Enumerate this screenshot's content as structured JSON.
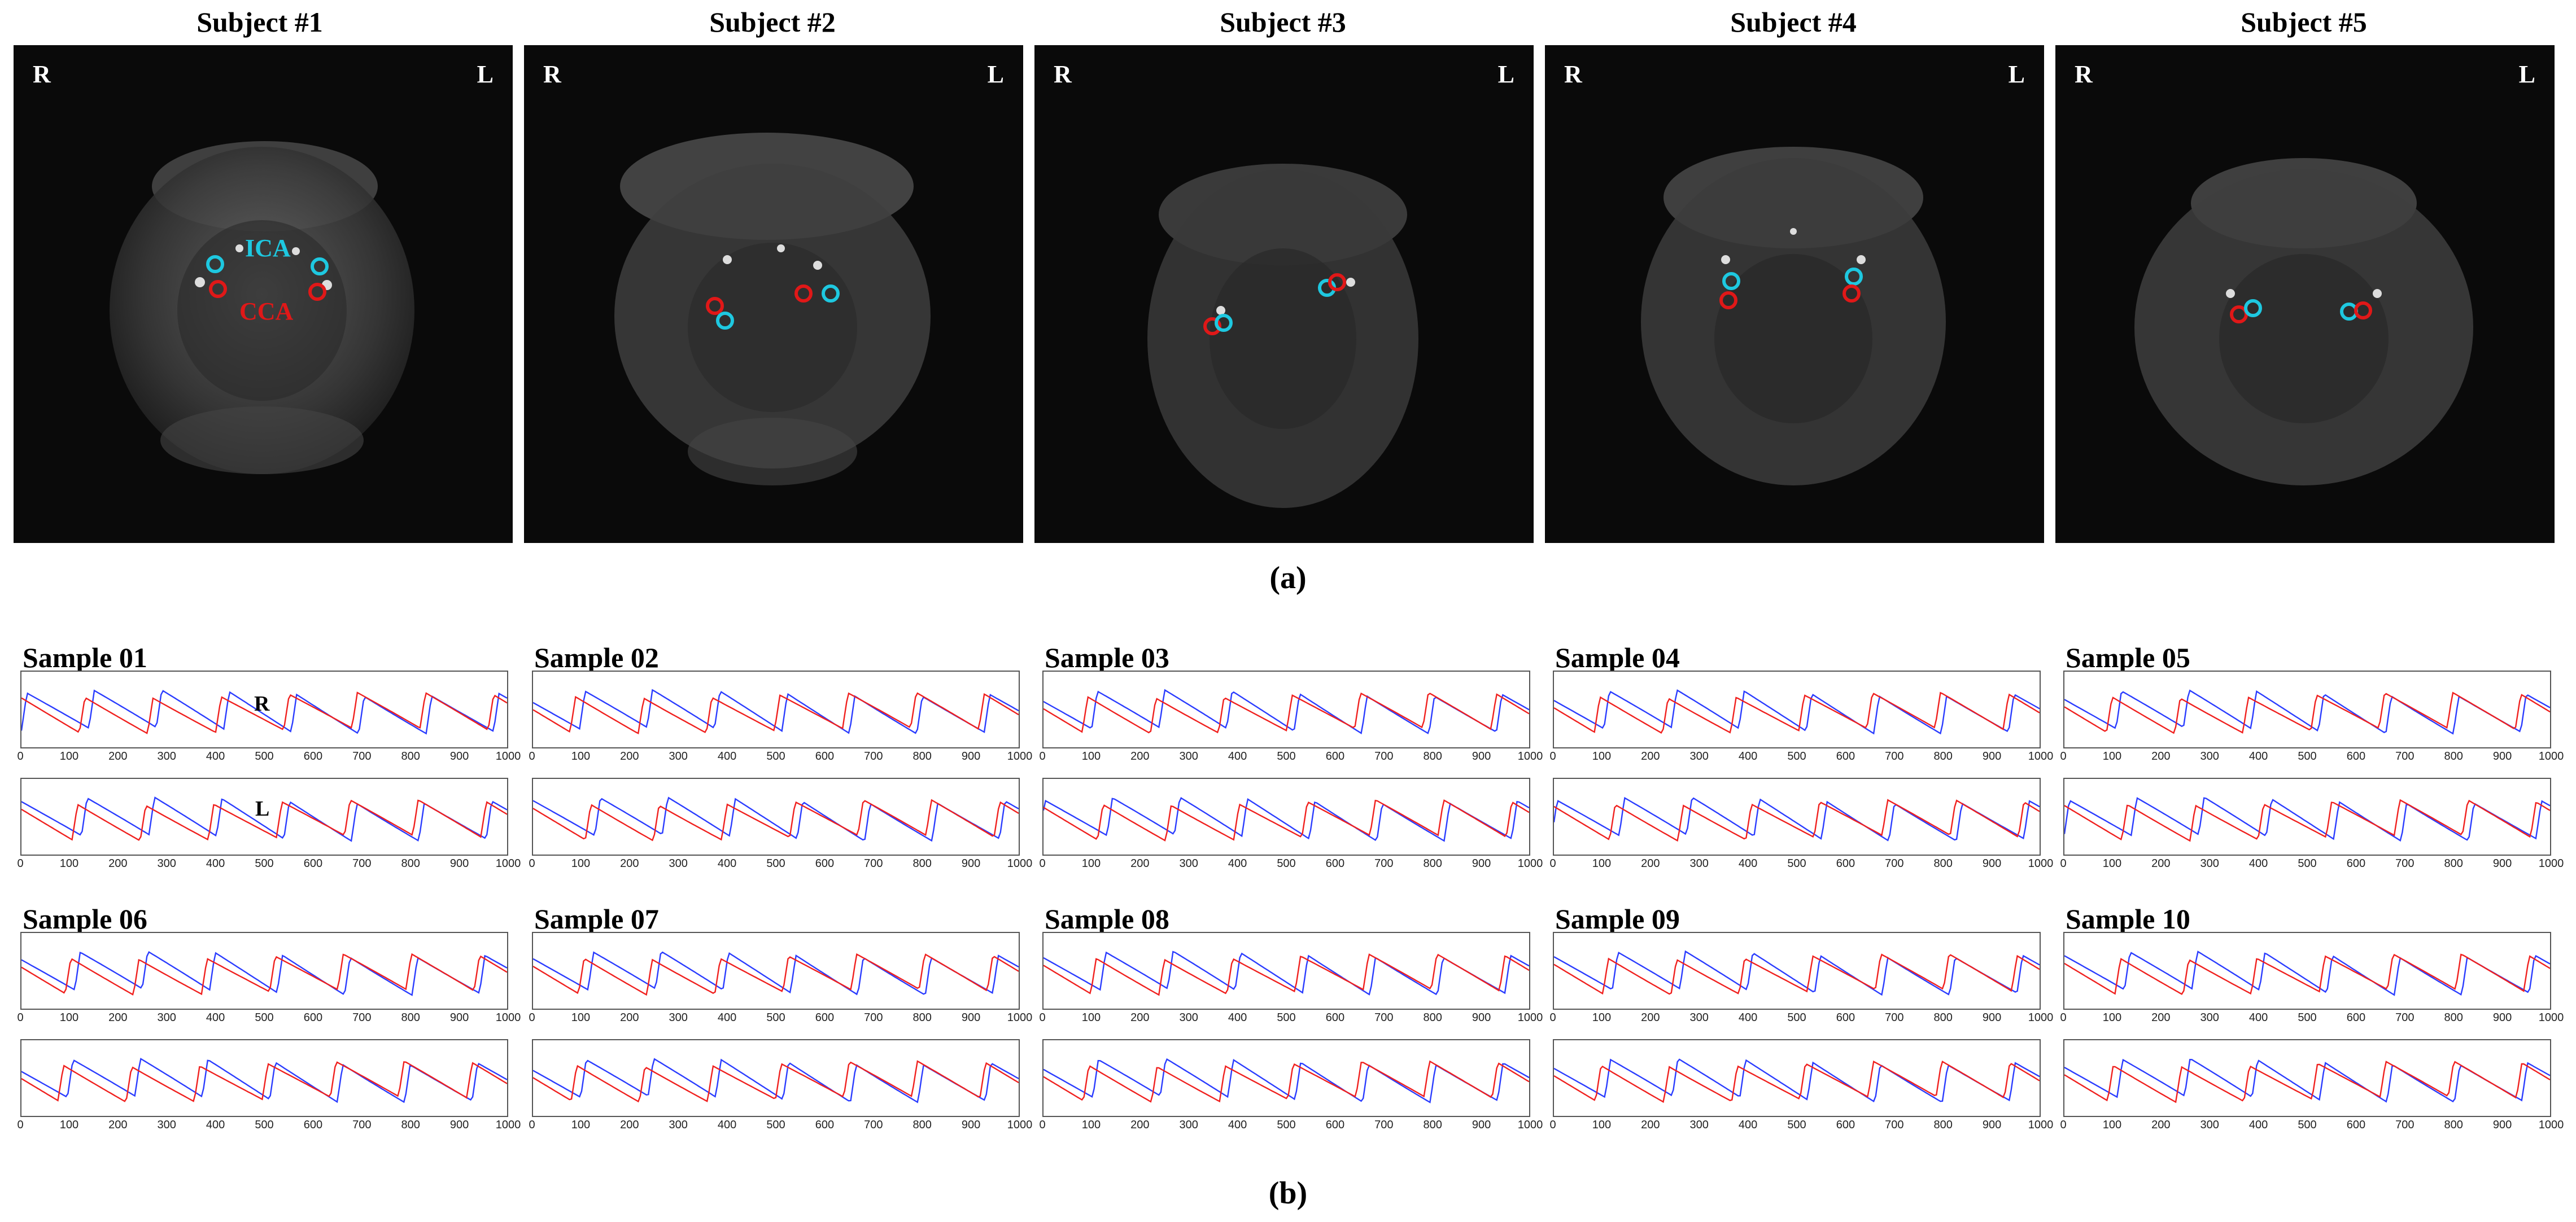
{
  "figure": {
    "part_a_label": "(a)",
    "part_b_label": "(b)",
    "side_left": "R",
    "side_right": "L",
    "vessel_ica": "ICA",
    "vessel_cca": "CCA",
    "ica_color": "#1ec8e0",
    "cca_color": "#e01818"
  },
  "subjects": [
    {
      "title": "Subject #1"
    },
    {
      "title": "Subject #2"
    },
    {
      "title": "Subject #3"
    },
    {
      "title": "Subject #4"
    },
    {
      "title": "Subject #5"
    }
  ],
  "samples": [
    {
      "title": "Sample 01"
    },
    {
      "title": "Sample 02"
    },
    {
      "title": "Sample 03"
    },
    {
      "title": "Sample 04"
    },
    {
      "title": "Sample 05"
    },
    {
      "title": "Sample 06"
    },
    {
      "title": "Sample 07"
    },
    {
      "title": "Sample 08"
    },
    {
      "title": "Sample 09"
    },
    {
      "title": "Sample 10"
    }
  ],
  "waveform_row_tags": {
    "right": "R",
    "left": "L"
  },
  "chart_data": {
    "type": "line",
    "x_ticks": [
      "0",
      "100",
      "200",
      "300",
      "400",
      "500",
      "600",
      "700",
      "800",
      "900",
      "1000"
    ],
    "xlim": [
      0,
      1000
    ],
    "series_colors": {
      "blue": "#2a3cff",
      "red": "#f0201e"
    },
    "grid": false
  }
}
